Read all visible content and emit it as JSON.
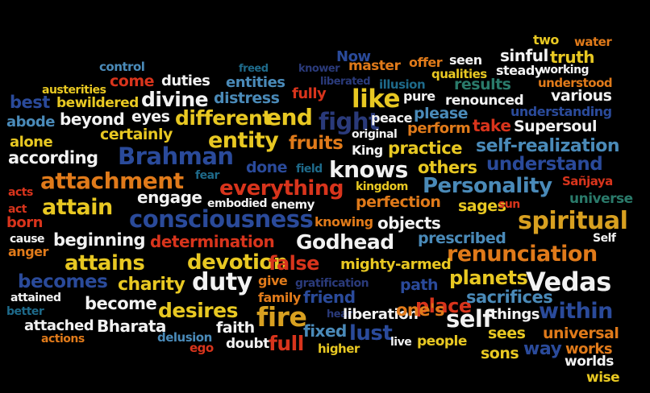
{
  "palette": {
    "white": "#f2f2f2",
    "yellow": "#e8c822",
    "orange": "#e07a1a",
    "red": "#d8341c",
    "blue": "#2a4a9a",
    "teal": "#1e6a8a",
    "lightblue": "#4a8ab8",
    "navy": "#2a3a7a",
    "green": "#2a7a6a",
    "gold": "#d8a020"
  },
  "words": [
    {
      "t": "two",
      "c": "yellow"
    },
    {
      "t": "water",
      "c": "orange"
    },
    {
      "t": "Now",
      "c": "blue"
    },
    {
      "t": "offer",
      "c": "orange"
    },
    {
      "t": "seen",
      "c": "white"
    },
    {
      "t": "sinful",
      "c": "white"
    },
    {
      "t": "truth",
      "c": "yellow"
    },
    {
      "t": "control",
      "c": "lightblue"
    },
    {
      "t": "freed",
      "c": "teal"
    },
    {
      "t": "knower",
      "c": "navy"
    },
    {
      "t": "master",
      "c": "orange"
    },
    {
      "t": "qualities",
      "c": "yellow"
    },
    {
      "t": "steady",
      "c": "white"
    },
    {
      "t": "working",
      "c": "white"
    },
    {
      "t": "come",
      "c": "red"
    },
    {
      "t": "duties",
      "c": "white"
    },
    {
      "t": "entities",
      "c": "lightblue"
    },
    {
      "t": "liberated",
      "c": "navy"
    },
    {
      "t": "illusion",
      "c": "teal"
    },
    {
      "t": "results",
      "c": "green"
    },
    {
      "t": "understood",
      "c": "orange"
    },
    {
      "t": "austerities",
      "c": "yellow"
    },
    {
      "t": "fully",
      "c": "red"
    },
    {
      "t": "pure",
      "c": "white"
    },
    {
      "t": "various",
      "c": "white"
    },
    {
      "t": "best",
      "c": "blue"
    },
    {
      "t": "bewildered",
      "c": "yellow"
    },
    {
      "t": "divine",
      "c": "white"
    },
    {
      "t": "distress",
      "c": "lightblue"
    },
    {
      "t": "like",
      "c": "yellow"
    },
    {
      "t": "renounced",
      "c": "white"
    },
    {
      "t": "please",
      "c": "lightblue"
    },
    {
      "t": "understanding",
      "c": "blue"
    },
    {
      "t": "abode",
      "c": "lightblue"
    },
    {
      "t": "beyond",
      "c": "white"
    },
    {
      "t": "eyes",
      "c": "white"
    },
    {
      "t": "different",
      "c": "yellow"
    },
    {
      "t": "end",
      "c": "yellow"
    },
    {
      "t": "fight",
      "c": "navy"
    },
    {
      "t": "peace",
      "c": "white"
    },
    {
      "t": "perform",
      "c": "orange"
    },
    {
      "t": "take",
      "c": "red"
    },
    {
      "t": "Supersoul",
      "c": "white"
    },
    {
      "t": "certainly",
      "c": "yellow"
    },
    {
      "t": "original",
      "c": "white"
    },
    {
      "t": "alone",
      "c": "yellow"
    },
    {
      "t": "entity",
      "c": "yellow"
    },
    {
      "t": "fruits",
      "c": "orange"
    },
    {
      "t": "King",
      "c": "white"
    },
    {
      "t": "practice",
      "c": "yellow"
    },
    {
      "t": "self-realization",
      "c": "lightblue"
    },
    {
      "t": "according",
      "c": "white"
    },
    {
      "t": "Brahman",
      "c": "blue"
    },
    {
      "t": "done",
      "c": "blue"
    },
    {
      "t": "field",
      "c": "teal"
    },
    {
      "t": "knows",
      "c": "white"
    },
    {
      "t": "others",
      "c": "yellow"
    },
    {
      "t": "understand",
      "c": "blue"
    },
    {
      "t": "attachment",
      "c": "orange"
    },
    {
      "t": "fear",
      "c": "teal"
    },
    {
      "t": "everything",
      "c": "red"
    },
    {
      "t": "kingdom",
      "c": "yellow"
    },
    {
      "t": "Personality",
      "c": "lightblue"
    },
    {
      "t": "Sañjaya",
      "c": "red"
    },
    {
      "t": "acts",
      "c": "red"
    },
    {
      "t": "engage",
      "c": "white"
    },
    {
      "t": "perfection",
      "c": "orange"
    },
    {
      "t": "universe",
      "c": "green"
    },
    {
      "t": "act",
      "c": "red"
    },
    {
      "t": "attain",
      "c": "yellow"
    },
    {
      "t": "embodied",
      "c": "white"
    },
    {
      "t": "enemy",
      "c": "white"
    },
    {
      "t": "sages",
      "c": "yellow"
    },
    {
      "t": "sun",
      "c": "red"
    },
    {
      "t": "born",
      "c": "red"
    },
    {
      "t": "consciousness",
      "c": "blue"
    },
    {
      "t": "knowing",
      "c": "orange"
    },
    {
      "t": "objects",
      "c": "white"
    },
    {
      "t": "spiritual",
      "c": "gold"
    },
    {
      "t": "cause",
      "c": "white"
    },
    {
      "t": "beginning",
      "c": "white"
    },
    {
      "t": "determination",
      "c": "red"
    },
    {
      "t": "Godhead",
      "c": "white"
    },
    {
      "t": "prescribed",
      "c": "lightblue"
    },
    {
      "t": "Self",
      "c": "white"
    },
    {
      "t": "anger",
      "c": "orange"
    },
    {
      "t": "renunciation",
      "c": "orange"
    },
    {
      "t": "attains",
      "c": "yellow"
    },
    {
      "t": "devotion",
      "c": "yellow"
    },
    {
      "t": "false",
      "c": "red"
    },
    {
      "t": "mighty-armed",
      "c": "yellow"
    },
    {
      "t": "becomes",
      "c": "blue"
    },
    {
      "t": "charity",
      "c": "yellow"
    },
    {
      "t": "duty",
      "c": "white"
    },
    {
      "t": "give",
      "c": "orange"
    },
    {
      "t": "path",
      "c": "blue"
    },
    {
      "t": "planets",
      "c": "yellow"
    },
    {
      "t": "Vedas",
      "c": "white"
    },
    {
      "t": "attained",
      "c": "white"
    },
    {
      "t": "gratification",
      "c": "navy"
    },
    {
      "t": "family",
      "c": "orange"
    },
    {
      "t": "friend",
      "c": "blue"
    },
    {
      "t": "become",
      "c": "white"
    },
    {
      "t": "desires",
      "c": "yellow"
    },
    {
      "t": "place",
      "c": "red"
    },
    {
      "t": "sacrifices",
      "c": "lightblue"
    },
    {
      "t": "better",
      "c": "teal"
    },
    {
      "t": "fire",
      "c": "gold"
    },
    {
      "t": "hear",
      "c": "navy"
    },
    {
      "t": "liberation",
      "c": "white"
    },
    {
      "t": "one's",
      "c": "orange"
    },
    {
      "t": "self",
      "c": "white"
    },
    {
      "t": "things",
      "c": "white"
    },
    {
      "t": "within",
      "c": "blue"
    },
    {
      "t": "attached",
      "c": "white"
    },
    {
      "t": "Bharata",
      "c": "white"
    },
    {
      "t": "faith",
      "c": "white"
    },
    {
      "t": "fixed",
      "c": "lightblue"
    },
    {
      "t": "lust",
      "c": "blue"
    },
    {
      "t": "sees",
      "c": "yellow"
    },
    {
      "t": "universal",
      "c": "orange"
    },
    {
      "t": "actions",
      "c": "orange"
    },
    {
      "t": "delusion",
      "c": "lightblue"
    },
    {
      "t": "ego",
      "c": "red"
    },
    {
      "t": "doubt",
      "c": "white"
    },
    {
      "t": "full",
      "c": "red"
    },
    {
      "t": "higher",
      "c": "yellow"
    },
    {
      "t": "live",
      "c": "white"
    },
    {
      "t": "people",
      "c": "yellow"
    },
    {
      "t": "sons",
      "c": "yellow"
    },
    {
      "t": "way",
      "c": "blue"
    },
    {
      "t": "works",
      "c": "orange"
    },
    {
      "t": "worlds",
      "c": "white"
    },
    {
      "t": "wise",
      "c": "yellow"
    }
  ]
}
